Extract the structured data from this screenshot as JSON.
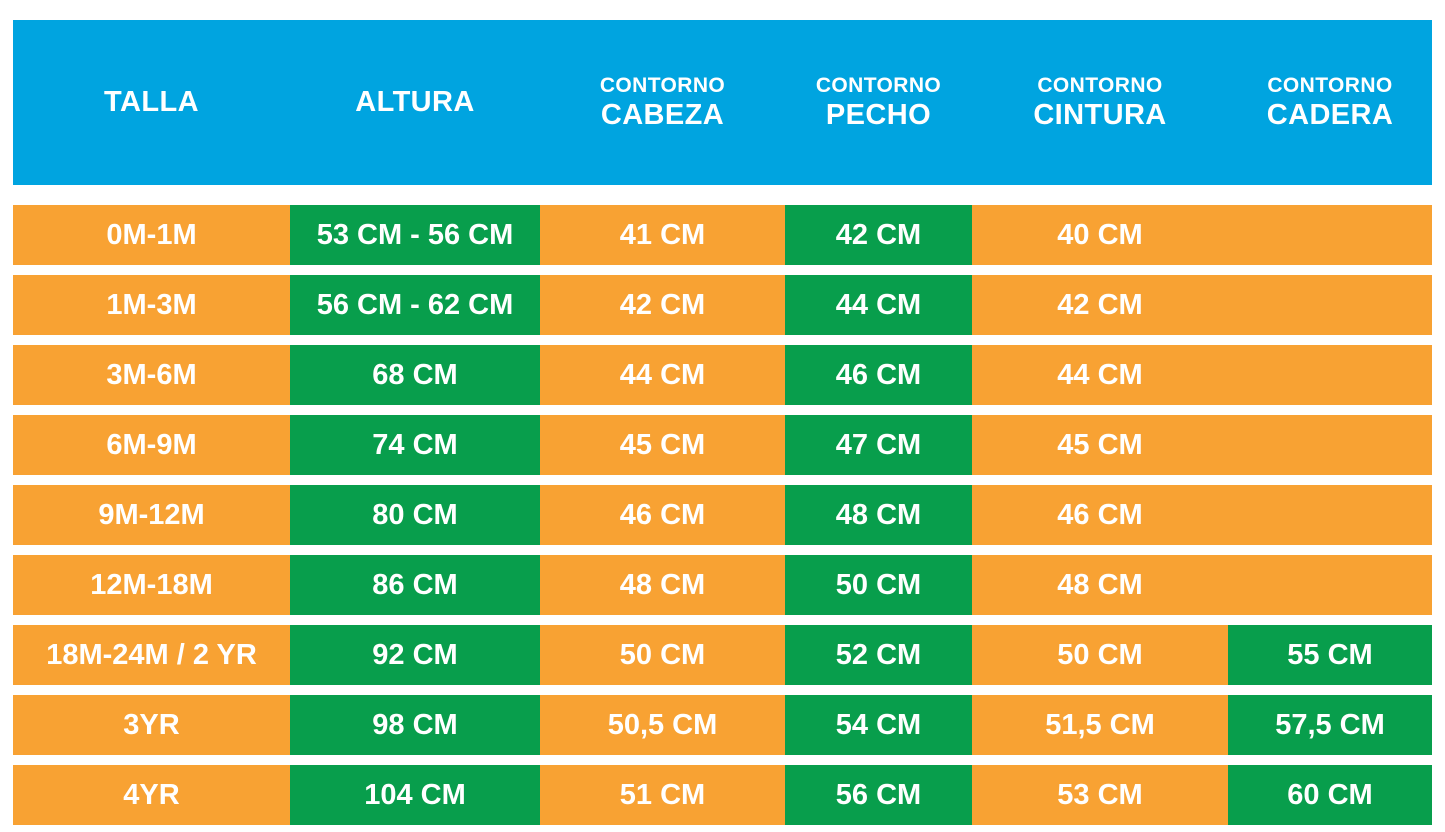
{
  "colors": {
    "header-bg": "#00a4e0",
    "cell-orange": "#f8a233",
    "cell-green": "#089e4c",
    "text": "#ffffff",
    "page-bg": "#ffffff"
  },
  "header": {
    "columns": [
      {
        "top": "",
        "main": "TALLA"
      },
      {
        "top": "",
        "main": "ALTURA"
      },
      {
        "top": "CONTORNO",
        "main": "CABEZA"
      },
      {
        "top": "CONTORNO",
        "main": "PECHO"
      },
      {
        "top": "CONTORNO",
        "main": "CINTURA"
      },
      {
        "top": "CONTORNO",
        "main": "CADERA"
      }
    ]
  },
  "table": {
    "rows": [
      {
        "cells": [
          {
            "text": "0M-1M",
            "style": "orange"
          },
          {
            "text": "53 CM - 56 CM",
            "style": "green"
          },
          {
            "text": "41 CM",
            "style": "orange"
          },
          {
            "text": "42 CM",
            "style": "green"
          },
          {
            "text": "40 CM",
            "style": "orange"
          },
          {
            "text": "",
            "style": "orange"
          }
        ]
      },
      {
        "cells": [
          {
            "text": "1M-3M",
            "style": "orange"
          },
          {
            "text": "56 CM - 62 CM",
            "style": "green"
          },
          {
            "text": "42 CM",
            "style": "orange"
          },
          {
            "text": "44 CM",
            "style": "green"
          },
          {
            "text": "42 CM",
            "style": "orange"
          },
          {
            "text": "",
            "style": "orange"
          }
        ]
      },
      {
        "cells": [
          {
            "text": "3M-6M",
            "style": "orange"
          },
          {
            "text": "68 CM",
            "style": "green"
          },
          {
            "text": "44 CM",
            "style": "orange"
          },
          {
            "text": "46 CM",
            "style": "green"
          },
          {
            "text": "44 CM",
            "style": "orange"
          },
          {
            "text": "",
            "style": "orange"
          }
        ]
      },
      {
        "cells": [
          {
            "text": "6M-9M",
            "style": "orange"
          },
          {
            "text": "74 CM",
            "style": "green"
          },
          {
            "text": "45 CM",
            "style": "orange"
          },
          {
            "text": "47 CM",
            "style": "green"
          },
          {
            "text": "45 CM",
            "style": "orange"
          },
          {
            "text": "",
            "style": "orange"
          }
        ]
      },
      {
        "cells": [
          {
            "text": "9M-12M",
            "style": "orange"
          },
          {
            "text": "80 CM",
            "style": "green"
          },
          {
            "text": "46 CM",
            "style": "orange"
          },
          {
            "text": "48 CM",
            "style": "green"
          },
          {
            "text": "46 CM",
            "style": "orange"
          },
          {
            "text": "",
            "style": "orange"
          }
        ]
      },
      {
        "cells": [
          {
            "text": "12M-18M",
            "style": "orange"
          },
          {
            "text": "86 CM",
            "style": "green"
          },
          {
            "text": "48 CM",
            "style": "orange"
          },
          {
            "text": "50 CM",
            "style": "green"
          },
          {
            "text": "48 CM",
            "style": "orange"
          },
          {
            "text": "",
            "style": "orange"
          }
        ]
      },
      {
        "cells": [
          {
            "text": "18M-24M / 2 YR",
            "style": "orange"
          },
          {
            "text": "92 CM",
            "style": "green"
          },
          {
            "text": "50 CM",
            "style": "orange"
          },
          {
            "text": "52 CM",
            "style": "green"
          },
          {
            "text": "50 CM",
            "style": "orange"
          },
          {
            "text": "55 CM",
            "style": "green"
          }
        ]
      },
      {
        "cells": [
          {
            "text": "3YR",
            "style": "orange"
          },
          {
            "text": "98 CM",
            "style": "green"
          },
          {
            "text": "50,5 CM",
            "style": "orange"
          },
          {
            "text": "54 CM",
            "style": "green"
          },
          {
            "text": "51,5 CM",
            "style": "orange"
          },
          {
            "text": "57,5 CM",
            "style": "green"
          }
        ]
      },
      {
        "cells": [
          {
            "text": "4YR",
            "style": "orange"
          },
          {
            "text": "104 CM",
            "style": "green"
          },
          {
            "text": "51 CM",
            "style": "orange"
          },
          {
            "text": "56 CM",
            "style": "green"
          },
          {
            "text": "53 CM",
            "style": "orange"
          },
          {
            "text": "60 CM",
            "style": "green"
          }
        ]
      }
    ]
  },
  "chart_data": {
    "type": "table",
    "title": "Tabla de tallas infantil (cm)",
    "columns": [
      "TALLA",
      "ALTURA",
      "CONTORNO CABEZA",
      "CONTORNO PECHO",
      "CONTORNO CINTURA",
      "CONTORNO CADERA"
    ],
    "rows": [
      [
        "0M-1M",
        "53 CM - 56 CM",
        "41 CM",
        "42 CM",
        "40 CM",
        ""
      ],
      [
        "1M-3M",
        "56 CM - 62 CM",
        "42 CM",
        "44 CM",
        "42 CM",
        ""
      ],
      [
        "3M-6M",
        "68 CM",
        "44 CM",
        "46 CM",
        "44 CM",
        ""
      ],
      [
        "6M-9M",
        "74 CM",
        "45 CM",
        "47 CM",
        "45 CM",
        ""
      ],
      [
        "9M-12M",
        "80 CM",
        "46 CM",
        "48 CM",
        "46 CM",
        ""
      ],
      [
        "12M-18M",
        "86 CM",
        "48 CM",
        "50 CM",
        "48 CM",
        ""
      ],
      [
        "18M-24M / 2 YR",
        "92 CM",
        "50 CM",
        "52 CM",
        "50 CM",
        "55 CM"
      ],
      [
        "3YR",
        "98 CM",
        "50,5 CM",
        "54 CM",
        "51,5 CM",
        "57,5 CM"
      ],
      [
        "4YR",
        "104 CM",
        "51 CM",
        "56 CM",
        "53 CM",
        "60 CM"
      ]
    ],
    "layout_hints": {
      "header_color": "#00a4e0",
      "green_highlight_columns": [
        "ALTURA",
        "CONTORNO PECHO"
      ],
      "green_highlight_cadera_rows": [
        "18M-24M / 2 YR",
        "3YR",
        "4YR"
      ],
      "default_cell_color": "#f8a233",
      "highlight_cell_color": "#089e4c"
    }
  }
}
